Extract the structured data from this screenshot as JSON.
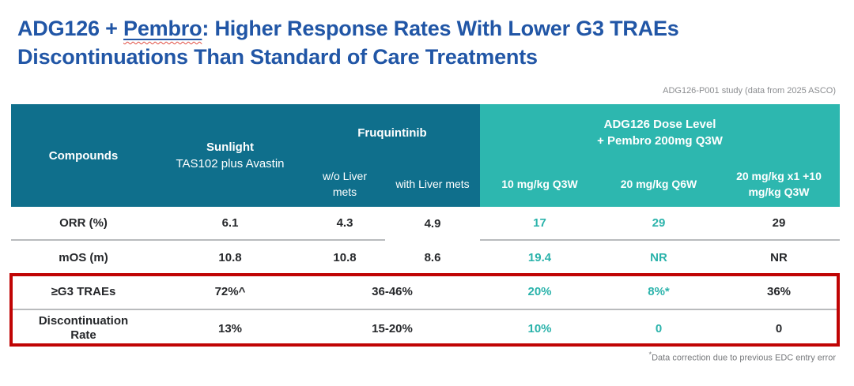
{
  "slide": {
    "title": {
      "prefix": "ADG126 + ",
      "highlight": "Pembro",
      "suffix": ": Higher Response Rates With Lower G3 TRAEs",
      "line2": "Discontinuations Than Standard of Care Treatments"
    },
    "source_note": "ADG126-P001 study (data from 2025 ASCO)",
    "footnote_marker": "*",
    "footnote_text": "Data correction due to previous EDC entry error"
  },
  "table": {
    "header": {
      "compounds": "Compounds",
      "sunlight": "Sunlight",
      "sunlight_sub": "TAS102 plus Avastin",
      "fruquintinib": "Fruquintinib",
      "fruq_col1": "w/o Liver mets",
      "fruq_col2": "with Liver mets",
      "adg_line1": "ADG126 Dose Level",
      "adg_line2": "+ Pembro 200mg Q3W",
      "adg_col1": "10 mg/kg Q3W",
      "adg_col2": "20 mg/kg Q6W",
      "adg_col3": "20 mg/kg x1 +10 mg/kg Q3W"
    },
    "rows": [
      {
        "label": "ORR (%)",
        "sunlight": "6.1",
        "fruq_wo": "4.3",
        "fruq_with": "4.9",
        "adg1": "17",
        "adg2": "29",
        "adg3": "29"
      },
      {
        "label": "mOS (m)",
        "sunlight": "10.8",
        "fruq_wo": "10.8",
        "fruq_with": "8.6",
        "adg1": "19.4",
        "adg2": "NR",
        "adg3": "NR"
      },
      {
        "label": "≥G3 TRAEs",
        "sunlight": "72%^",
        "fruq_merged": "36-46%",
        "adg1": "20%",
        "adg2": "8%*",
        "adg3": "36%"
      },
      {
        "label": "Discontinuation Rate",
        "sunlight": "13%",
        "fruq_merged": "15-20%",
        "adg1": "10%",
        "adg2": "0",
        "adg3": "0"
      }
    ]
  },
  "colors": {
    "title_blue": "#2156A6",
    "header_dark_teal": "#0F6F8C",
    "header_light_teal": "#2DB7AF",
    "teal_value": "#2BB3AB",
    "dark_value": "#26282B",
    "highlight_red": "#C00404",
    "note_gray": "#8B8D90"
  }
}
